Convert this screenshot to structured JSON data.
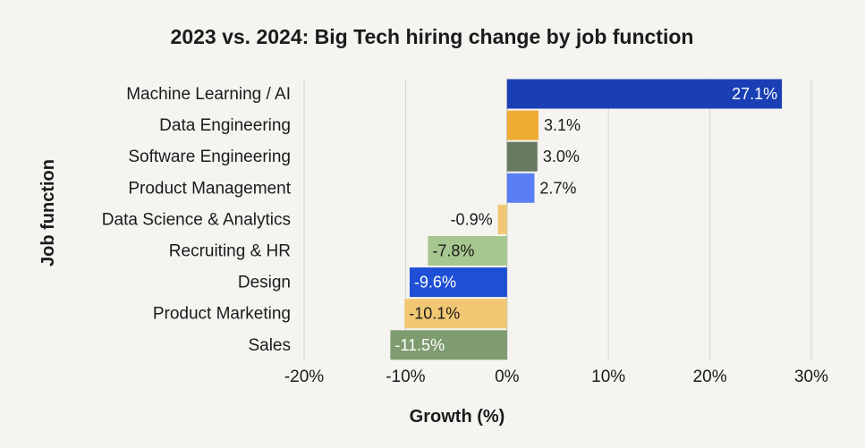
{
  "chart_data": {
    "type": "bar",
    "orientation": "horizontal",
    "title": "2023 vs. 2024: Big Tech hiring change by job function",
    "xlabel": "Growth (%)",
    "ylabel": "Job function",
    "xlim": [
      -20,
      30
    ],
    "xticks": [
      -20,
      -10,
      0,
      10,
      20,
      30
    ],
    "xtick_labels": [
      "-20%",
      "-10%",
      "0%",
      "10%",
      "20%",
      "30%"
    ],
    "grid": true,
    "categories": [
      "Machine Learning / AI",
      "Data Engineering",
      "Software Engineering",
      "Product Management",
      "Data Science & Analytics",
      "Recruiting & HR",
      "Design",
      "Product Marketing",
      "Sales"
    ],
    "values": [
      27.1,
      3.1,
      3.0,
      2.7,
      -0.9,
      -7.8,
      -9.6,
      -10.1,
      -11.5
    ],
    "value_labels": [
      "27.1%",
      "3.1%",
      "3.0%",
      "2.7%",
      "-0.9%",
      "-7.8%",
      "-9.6%",
      "-10.1%",
      "-11.5%"
    ],
    "colors": [
      "#1a3fb5",
      "#eeac33",
      "#687a60",
      "#5a7ef5",
      "#f2c774",
      "#a6c78f",
      "#1e4fd6",
      "#f2c774",
      "#7f9c70"
    ],
    "label_colors": [
      "#ffffff",
      "#1b1b1b",
      "#1b1b1b",
      "#1b1b1b",
      "#1b1b1b",
      "#1b1b1b",
      "#ffffff",
      "#1b1b1b",
      "#ffffff"
    ],
    "label_inside": [
      true,
      false,
      false,
      false,
      false,
      true,
      true,
      true,
      true
    ]
  }
}
